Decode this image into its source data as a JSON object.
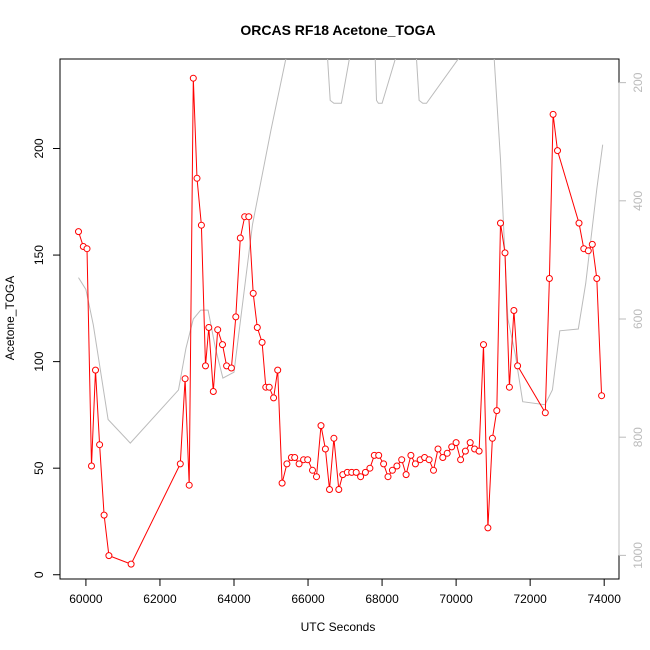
{
  "chart_data": {
    "type": "line",
    "title": "ORCAS RF18 Acetone_TOGA",
    "xlabel": "UTC Seconds",
    "ylabel": "Acetone_TOGA",
    "xlim": [
      59300,
      74400
    ],
    "ylim": [
      -2,
      242
    ],
    "x_ticks": [
      "60000",
      "62000",
      "64000",
      "66000",
      "68000",
      "70000",
      "72000",
      "74000"
    ],
    "y_ticks": [
      "0",
      "50",
      "100",
      "150",
      "200"
    ],
    "right_axis": {
      "ylim": [
        1040,
        160
      ],
      "ticks": [
        "200",
        "400",
        "600",
        "800",
        "1000"
      ],
      "color": "#bbbbbb"
    },
    "series": [
      {
        "color": "#ff0000",
        "marker": "open-circle",
        "x": [
          59800,
          59930,
          60030,
          60150,
          60260,
          60370,
          60490,
          60620,
          61220,
          62550,
          62680,
          62790,
          62900,
          63000,
          63120,
          63230,
          63320,
          63440,
          63560,
          63690,
          63800,
          63930,
          64050,
          64170,
          64290,
          64400,
          64520,
          64630,
          64760,
          64860,
          64950,
          65070,
          65180,
          65300,
          65430,
          65550,
          65640,
          65760,
          65880,
          65990,
          66120,
          66230,
          66350,
          66470,
          66580,
          66700,
          66830,
          66940,
          67060,
          67180,
          67300,
          67420,
          67550,
          67670,
          67790,
          67910,
          68040,
          68160,
          68280,
          68400,
          68530,
          68650,
          68780,
          68900,
          69030,
          69150,
          69270,
          69390,
          69510,
          69640,
          69760,
          69880,
          70000,
          70120,
          70250,
          70380,
          70500,
          70620,
          70740,
          70860,
          70980,
          71100,
          71200,
          71320,
          71440,
          71560,
          71660,
          72410,
          72520,
          72620,
          72740,
          73320,
          73450,
          73570,
          73680,
          73800,
          73930
        ],
        "y": [
          161,
          154,
          153,
          51,
          96,
          61,
          28,
          9,
          5,
          52,
          92,
          42,
          233,
          186,
          164,
          98,
          116,
          86,
          115,
          108,
          98,
          97,
          121,
          158,
          168,
          168,
          132,
          116,
          109,
          88,
          88,
          83,
          96,
          43,
          52,
          55,
          55,
          52,
          54,
          54,
          49,
          46,
          70,
          59,
          40,
          64,
          40,
          47,
          48,
          48,
          48,
          46,
          48,
          50,
          56,
          56,
          52,
          46,
          49,
          51,
          54,
          47,
          56,
          52,
          54,
          55,
          54,
          49,
          59,
          55,
          57,
          60,
          62,
          54,
          58,
          62,
          59,
          58,
          108,
          22,
          64,
          77,
          165,
          151,
          88,
          124,
          98,
          76,
          139,
          216,
          199,
          165,
          153,
          152,
          155,
          139,
          84
        ]
      },
      {
        "color": "#bbbbbb",
        "axis": "right",
        "x": [
          59800,
          60000,
          60200,
          60600,
          61200,
          62500,
          62700,
          62900,
          63100,
          63300,
          63500,
          63700,
          64000,
          64500,
          65000,
          65500,
          66500,
          66600,
          66700,
          66800,
          66900,
          67200,
          67800,
          67850,
          67900,
          68000,
          68500,
          68900,
          69000,
          69100,
          69200,
          70400,
          70800,
          71000,
          71200,
          71400,
          71600,
          71800,
          72400,
          72600,
          72800,
          73300,
          73500,
          73800,
          73960
        ],
        "y": [
          530,
          550,
          610,
          770,
          810,
          720,
          650,
          600,
          585,
          585,
          650,
          700,
          690,
          440,
          280,
          130,
          130,
          230,
          235,
          235,
          235,
          130,
          130,
          230,
          235,
          235,
          130,
          130,
          230,
          235,
          235,
          130,
          130,
          130,
          330,
          600,
          660,
          740,
          745,
          720,
          620,
          617,
          540,
          380,
          305
        ]
      }
    ]
  }
}
